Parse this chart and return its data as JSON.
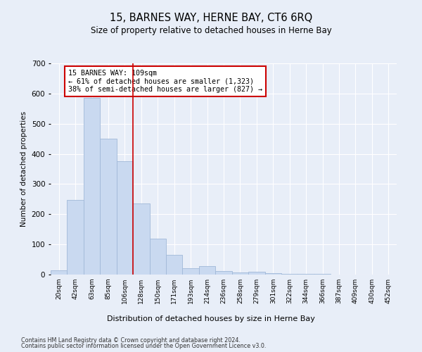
{
  "title1": "15, BARNES WAY, HERNE BAY, CT6 6RQ",
  "title2": "Size of property relative to detached houses in Herne Bay",
  "xlabel": "Distribution of detached houses by size in Herne Bay",
  "ylabel": "Number of detached properties",
  "categories": [
    "20sqm",
    "42sqm",
    "63sqm",
    "85sqm",
    "106sqm",
    "128sqm",
    "150sqm",
    "171sqm",
    "193sqm",
    "214sqm",
    "236sqm",
    "258sqm",
    "279sqm",
    "301sqm",
    "322sqm",
    "344sqm",
    "366sqm",
    "387sqm",
    "409sqm",
    "430sqm",
    "452sqm"
  ],
  "values": [
    15,
    248,
    585,
    450,
    375,
    235,
    120,
    65,
    22,
    28,
    12,
    8,
    10,
    5,
    3,
    2,
    2,
    1,
    1,
    0,
    0
  ],
  "bar_color": "#c9d9f0",
  "bar_edge_color": "#a0b8d8",
  "vline_x": 4.5,
  "vline_color": "#cc0000",
  "annotation_text": "15 BARNES WAY: 109sqm\n← 61% of detached houses are smaller (1,323)\n38% of semi-detached houses are larger (827) →",
  "annotation_box_color": "#ffffff",
  "annotation_box_edge": "#cc0000",
  "ylim": [
    0,
    700
  ],
  "yticks": [
    0,
    100,
    200,
    300,
    400,
    500,
    600,
    700
  ],
  "background_color": "#e8eef8",
  "fig_color": "#e8eef8",
  "footer1": "Contains HM Land Registry data © Crown copyright and database right 2024.",
  "footer2": "Contains public sector information licensed under the Open Government Licence v3.0."
}
